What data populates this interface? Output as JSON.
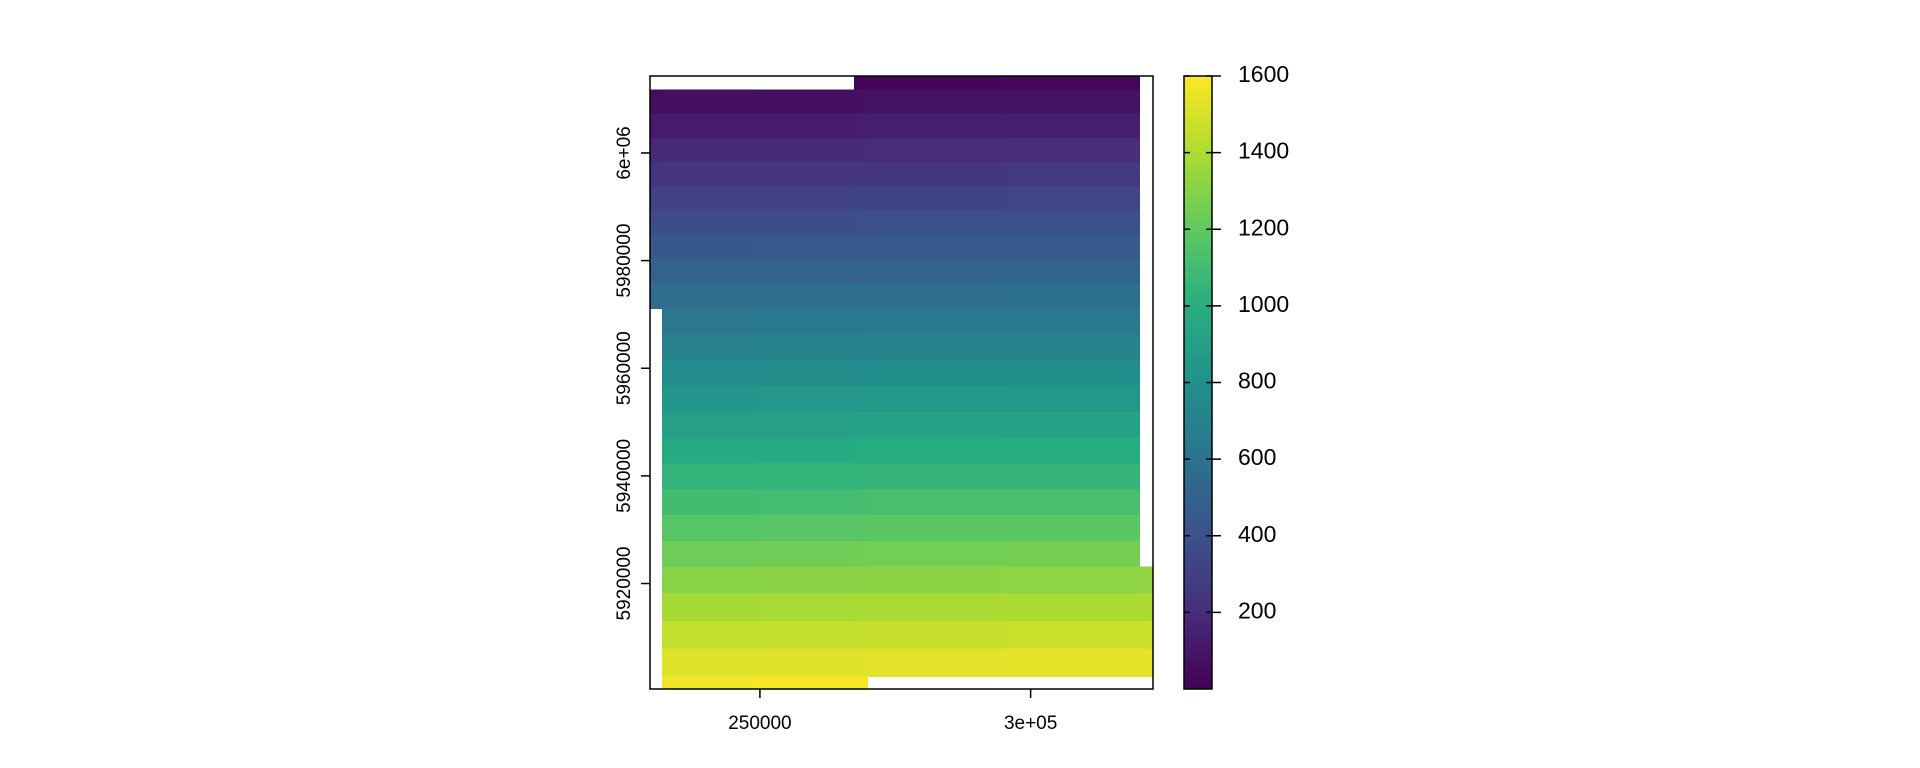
{
  "chart_data": {
    "type": "heatmap",
    "x_edges": [
      229700,
      231900,
      249600,
      267400,
      269900,
      295000,
      320100,
      322600
    ],
    "y_edges": [
      6014300,
      6011800,
      6007300,
      6002800,
      5998300,
      5993800,
      5989300,
      5984800,
      5980300,
      5975800,
      5971100,
      5966300,
      5961500,
      5956700,
      5951900,
      5947100,
      5942300,
      5937500,
      5932700,
      5927900,
      5923200,
      5918100,
      5913000,
      5907900,
      5902700,
      5900400
    ],
    "values": [
      [
        null,
        null,
        null,
        18,
        22,
        26,
        null
      ],
      [
        55,
        59,
        63,
        67,
        71,
        75,
        null
      ],
      [
        118,
        122,
        126,
        130,
        134,
        138,
        null
      ],
      [
        181,
        185,
        189,
        193,
        197,
        201,
        null
      ],
      [
        244,
        248,
        252,
        256,
        260,
        264,
        null
      ],
      [
        308,
        312,
        316,
        320,
        324,
        328,
        null
      ],
      [
        371,
        375,
        379,
        383,
        387,
        391,
        null
      ],
      [
        434,
        438,
        442,
        446,
        450,
        454,
        null
      ],
      [
        497,
        501,
        505,
        509,
        513,
        517,
        null
      ],
      [
        562,
        566,
        570,
        574,
        578,
        582,
        null
      ],
      [
        null,
        633,
        637,
        641,
        645,
        649,
        null
      ],
      [
        null,
        700,
        704,
        708,
        712,
        716,
        null
      ],
      [
        null,
        768,
        772,
        776,
        780,
        784,
        null
      ],
      [
        null,
        835,
        839,
        843,
        847,
        851,
        null
      ],
      [
        null,
        902,
        906,
        910,
        914,
        918,
        null
      ],
      [
        null,
        970,
        974,
        978,
        982,
        986,
        null
      ],
      [
        null,
        1037,
        1041,
        1045,
        1049,
        1053,
        null
      ],
      [
        null,
        1105,
        1109,
        1113,
        1117,
        1121,
        null
      ],
      [
        null,
        1172,
        1176,
        1180,
        1184,
        1188,
        null
      ],
      [
        null,
        1239,
        1243,
        1247,
        1251,
        1255,
        null
      ],
      [
        null,
        1308,
        1312,
        1316,
        1320,
        1324,
        1328
      ],
      [
        null,
        1380,
        1384,
        1388,
        1392,
        1396,
        1400
      ],
      [
        null,
        1451,
        1455,
        1459,
        1463,
        1467,
        1471
      ],
      [
        null,
        1523,
        1527,
        1531,
        1535,
        1539,
        1543
      ],
      [
        null,
        1575,
        1579,
        1583,
        null,
        null,
        null
      ]
    ],
    "xlim": [
      229700,
      322600
    ],
    "ylim": [
      5900400,
      6014300
    ],
    "xticks": [
      250000,
      {
        "value": 300000,
        "label": "3e+05"
      }
    ],
    "yticks": [
      5920000,
      5940000,
      5960000,
      5980000,
      {
        "value": 6000000,
        "label": "6e+06"
      }
    ],
    "colorbar": {
      "zlim": [
        0,
        1600
      ],
      "ticks": [
        200,
        400,
        600,
        800,
        1000,
        1200,
        1400,
        1600
      ],
      "palette": [
        "#440154",
        "#472d7b",
        "#3b528b",
        "#2c728e",
        "#21918c",
        "#28ae80",
        "#5ec962",
        "#addc30",
        "#fde725"
      ]
    }
  }
}
